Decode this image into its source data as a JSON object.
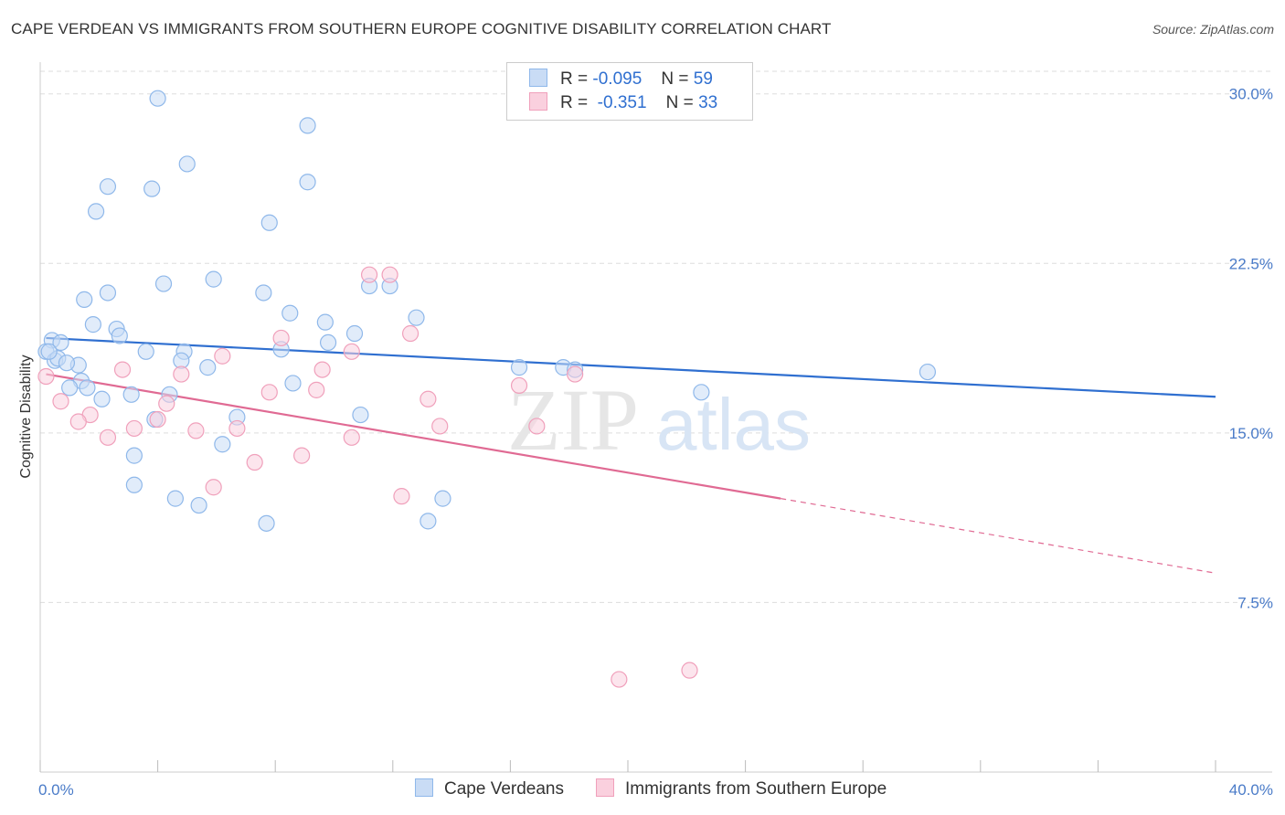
{
  "title": "CAPE VERDEAN VS IMMIGRANTS FROM SOUTHERN EUROPE COGNITIVE DISABILITY CORRELATION CHART",
  "source": "Source: ZipAtlas.com",
  "watermark": {
    "zip": "ZIP",
    "atlas": "atlas"
  },
  "legend": {
    "rows": [
      {
        "r_label": "R =",
        "r_value": "-0.095",
        "n_label": "N =",
        "n_value": "59"
      },
      {
        "r_label": "R =",
        "r_value": "-0.351",
        "n_label": "N =",
        "n_value": "33"
      }
    ]
  },
  "colors": {
    "blue": "#8fb8ea",
    "blue_fill": "#c9dcf5",
    "blue_line": "#2f6fd0",
    "pink": "#f0a0bb",
    "pink_fill": "#fad0de",
    "pink_line": "#e06a93",
    "axis_text": "#4a7bc8",
    "grid": "#dddddd"
  },
  "chart_data": {
    "type": "scatter",
    "title": "CAPE VERDEAN VS IMMIGRANTS FROM SOUTHERN EUROPE COGNITIVE DISABILITY CORRELATION CHART",
    "xlabel": "",
    "ylabel": "Cognitive Disability",
    "xlim": [
      0,
      40
    ],
    "ylim": [
      0,
      31
    ],
    "x_tick_labels": [
      "0.0%",
      "40.0%"
    ],
    "y_ticks": [
      7.5,
      15.0,
      22.5,
      30.0
    ],
    "y_tick_labels": [
      "7.5%",
      "15.0%",
      "22.5%",
      "30.0%"
    ],
    "grid": true,
    "legend_position": "bottom",
    "series": [
      {
        "name": "Cape Verdeans",
        "color": "blue",
        "trend": {
          "x": [
            0.2,
            40.0
          ],
          "y": [
            19.2,
            16.6
          ]
        },
        "points": [
          [
            4.0,
            29.8
          ],
          [
            9.1,
            28.6
          ],
          [
            5.0,
            26.9
          ],
          [
            9.1,
            26.1
          ],
          [
            2.3,
            25.9
          ],
          [
            3.8,
            25.8
          ],
          [
            1.9,
            24.8
          ],
          [
            7.8,
            24.3
          ],
          [
            4.2,
            21.6
          ],
          [
            5.9,
            21.8
          ],
          [
            7.6,
            21.2
          ],
          [
            2.3,
            21.2
          ],
          [
            1.5,
            20.9
          ],
          [
            11.2,
            21.5
          ],
          [
            11.9,
            21.5
          ],
          [
            8.5,
            20.3
          ],
          [
            12.8,
            20.1
          ],
          [
            9.7,
            19.9
          ],
          [
            2.6,
            19.6
          ],
          [
            2.7,
            19.3
          ],
          [
            10.7,
            19.4
          ],
          [
            0.4,
            19.1
          ],
          [
            9.8,
            19.0
          ],
          [
            0.7,
            19.0
          ],
          [
            1.8,
            19.8
          ],
          [
            3.6,
            18.6
          ],
          [
            4.9,
            18.6
          ],
          [
            8.2,
            18.7
          ],
          [
            0.2,
            18.6
          ],
          [
            0.5,
            18.2
          ],
          [
            0.6,
            18.3
          ],
          [
            4.8,
            18.2
          ],
          [
            1.3,
            18.0
          ],
          [
            5.7,
            17.9
          ],
          [
            16.3,
            17.9
          ],
          [
            17.8,
            17.9
          ],
          [
            18.2,
            17.8
          ],
          [
            30.2,
            17.7
          ],
          [
            1.4,
            17.3
          ],
          [
            8.6,
            17.2
          ],
          [
            1.0,
            17.0
          ],
          [
            1.6,
            17.0
          ],
          [
            2.1,
            16.5
          ],
          [
            3.1,
            16.7
          ],
          [
            4.4,
            16.7
          ],
          [
            22.5,
            16.8
          ],
          [
            6.7,
            15.7
          ],
          [
            10.9,
            15.8
          ],
          [
            3.9,
            15.6
          ],
          [
            6.2,
            14.5
          ],
          [
            3.2,
            14.0
          ],
          [
            3.2,
            12.7
          ],
          [
            4.6,
            12.1
          ],
          [
            5.4,
            11.8
          ],
          [
            13.7,
            12.1
          ],
          [
            7.7,
            11.0
          ],
          [
            13.2,
            11.1
          ],
          [
            0.3,
            18.6
          ],
          [
            0.9,
            18.1
          ]
        ]
      },
      {
        "name": "Immigrants from Southern Europe",
        "color": "pink",
        "trend": {
          "x": [
            0.2,
            25.2
          ],
          "y": [
            17.6,
            12.1
          ]
        },
        "trend_extension": {
          "x": [
            25.2,
            40.0
          ],
          "y": [
            12.1,
            8.8
          ]
        },
        "points": [
          [
            0.2,
            17.5
          ],
          [
            11.2,
            22.0
          ],
          [
            11.9,
            22.0
          ],
          [
            8.2,
            19.2
          ],
          [
            12.6,
            19.4
          ],
          [
            10.6,
            18.6
          ],
          [
            6.2,
            18.4
          ],
          [
            2.8,
            17.8
          ],
          [
            9.6,
            17.8
          ],
          [
            4.8,
            17.6
          ],
          [
            18.2,
            17.6
          ],
          [
            16.3,
            17.1
          ],
          [
            7.8,
            16.8
          ],
          [
            9.4,
            16.9
          ],
          [
            0.7,
            16.4
          ],
          [
            13.2,
            16.5
          ],
          [
            4.3,
            16.3
          ],
          [
            1.7,
            15.8
          ],
          [
            4.0,
            15.6
          ],
          [
            1.3,
            15.5
          ],
          [
            3.2,
            15.2
          ],
          [
            6.7,
            15.2
          ],
          [
            13.6,
            15.3
          ],
          [
            16.9,
            15.3
          ],
          [
            5.3,
            15.1
          ],
          [
            2.3,
            14.8
          ],
          [
            10.6,
            14.8
          ],
          [
            8.9,
            14.0
          ],
          [
            7.3,
            13.7
          ],
          [
            5.9,
            12.6
          ],
          [
            12.3,
            12.2
          ],
          [
            19.7,
            4.1
          ],
          [
            22.1,
            4.5
          ]
        ]
      }
    ]
  },
  "bottom_legend": {
    "items": [
      "Cape Verdeans",
      "Immigrants from Southern Europe"
    ]
  }
}
